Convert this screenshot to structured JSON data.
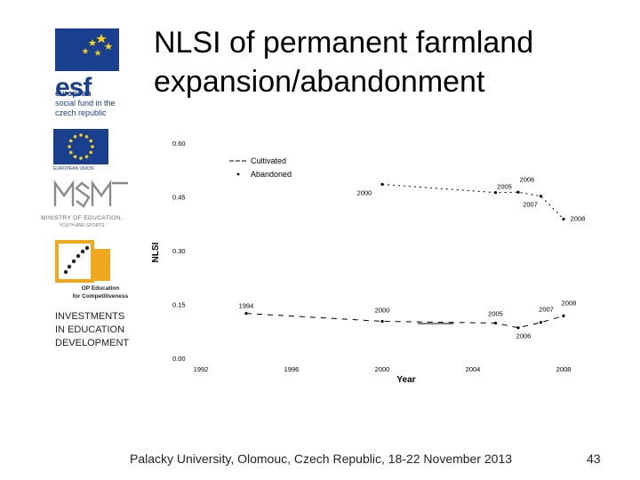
{
  "slide": {
    "title_line1": "NLSI of permanent farmland",
    "title_line2": "expansion/abandonment",
    "footer": "Palacky University, Olomouc, Czech Republic, 18-22 November 2013",
    "page_number": "43"
  },
  "logos": {
    "esf_word": "esf",
    "esf_sub1": "european",
    "esf_sub2": "social fund in the",
    "esf_sub3": "czech republic",
    "eu_label": "EUROPEAN UNION",
    "msmt_label": "MINISTRY OF EDUCATION,",
    "msmt_label2": "YOUTH AND SPORTS",
    "op_label1": "OP Education",
    "op_label2": "for Competitiveness",
    "invest_line1": "INVESTMENTS",
    "invest_line2": "IN EDUCATION",
    "invest_line3": "DEVELOPMENT",
    "brand_color": "#1b3f8f",
    "star_color": "#f7d117"
  },
  "chart_data": {
    "type": "line",
    "xlabel": "Year",
    "ylabel": "NLSI",
    "ylim": [
      0.0,
      0.6
    ],
    "xlim": [
      1992,
      2008
    ],
    "y_ticks": [
      "0.00",
      "0.15",
      "0.30",
      "0.45",
      "0.60"
    ],
    "x_ticks": [
      "1992",
      "1996",
      "2000",
      "2004",
      "2008"
    ],
    "legend_position": "top-left",
    "series": [
      {
        "name": "Cultivated",
        "style": "dashed",
        "points": [
          {
            "x": 1994,
            "y": 0.125,
            "label": "1994"
          },
          {
            "x": 2000,
            "y": 0.103,
            "label": "2000"
          },
          {
            "x": 2005,
            "y": 0.098,
            "label": "2005"
          },
          {
            "x": 2006,
            "y": 0.085,
            "label": "2006"
          },
          {
            "x": 2007,
            "y": 0.1,
            "label": "2007"
          },
          {
            "x": 2008,
            "y": 0.118,
            "label": "2008"
          }
        ]
      },
      {
        "name": "Abandoned",
        "style": "dotted-marker",
        "points": [
          {
            "x": 2000,
            "y": 0.485,
            "label": "2000"
          },
          {
            "x": 2005,
            "y": 0.462,
            "label": "2005"
          },
          {
            "x": 2006,
            "y": 0.463,
            "label": "2006"
          },
          {
            "x": 2007,
            "y": 0.452,
            "label": "2007"
          },
          {
            "x": 2008,
            "y": 0.388,
            "label": "2008"
          }
        ]
      }
    ]
  }
}
